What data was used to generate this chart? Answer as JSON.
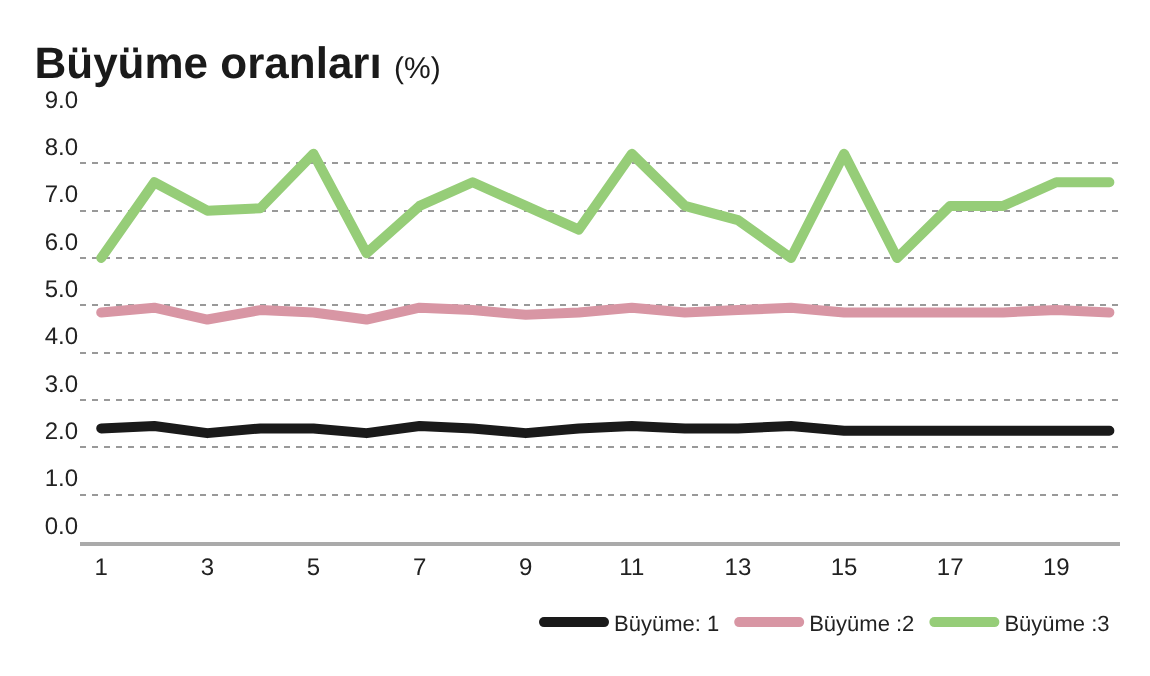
{
  "chart_data": {
    "type": "line",
    "title": "Büyüme oranları",
    "subtitle": "(%)",
    "x": [
      1,
      2,
      3,
      4,
      5,
      6,
      7,
      8,
      9,
      10,
      11,
      12,
      13,
      14,
      15,
      16,
      17,
      18,
      19,
      20
    ],
    "series": [
      {
        "name": "Büyüme: 1",
        "color": "#1a1a1a",
        "values": [
          2.4,
          2.45,
          2.3,
          2.4,
          2.4,
          2.3,
          2.45,
          2.4,
          2.3,
          2.4,
          2.45,
          2.4,
          2.4,
          2.45,
          2.35,
          2.35,
          2.35,
          2.35,
          2.35,
          2.35
        ]
      },
      {
        "name": "Büyüme :2",
        "color": "#d896a4",
        "values": [
          4.85,
          4.95,
          4.7,
          4.9,
          4.85,
          4.7,
          4.95,
          4.9,
          4.8,
          4.85,
          4.95,
          4.85,
          4.9,
          4.95,
          4.85,
          4.85,
          4.85,
          4.85,
          4.9,
          4.85
        ]
      },
      {
        "name": "Büyüme :3",
        "color": "#96cd78",
        "values": [
          6.0,
          7.6,
          7.0,
          7.05,
          8.2,
          6.1,
          7.1,
          7.6,
          7.1,
          6.6,
          8.2,
          7.1,
          6.8,
          6.0,
          8.2,
          6.0,
          7.1,
          7.1,
          7.6,
          7.6
        ]
      }
    ],
    "xlim": [
      0.6,
      20.2
    ],
    "xticks": [
      1,
      3,
      5,
      7,
      9,
      11,
      13,
      15,
      17,
      19
    ],
    "ylim": [
      0,
      9
    ],
    "yticks": [
      {
        "value": 0,
        "label": "0.0"
      },
      {
        "value": 1,
        "label": "1.0"
      },
      {
        "value": 2,
        "label": "2.0"
      },
      {
        "value": 3,
        "label": "3.0"
      },
      {
        "value": 4,
        "label": "4.0"
      },
      {
        "value": 5,
        "label": "5.0"
      },
      {
        "value": 6,
        "label": "6.0"
      },
      {
        "value": 7,
        "label": "7.0"
      },
      {
        "value": 8,
        "label": "8.0"
      },
      {
        "value": 9,
        "label": "9.0"
      }
    ],
    "grid": "y",
    "legend": "bottom right",
    "marker": "none",
    "line_style": "solid"
  }
}
